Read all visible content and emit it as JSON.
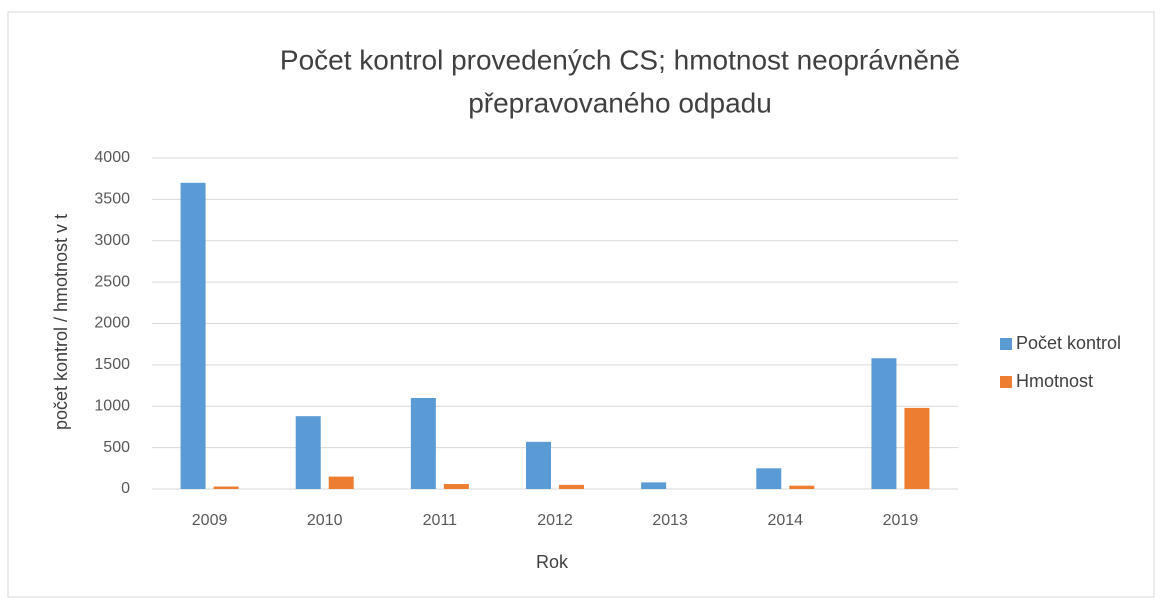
{
  "chart_data": {
    "type": "bar",
    "title": [
      "Počet kontrol provedených CS; hmotnost neoprávněně",
      "přepravovaného odpadu"
    ],
    "x_label": "Rok",
    "y_label": "počet kontrol / hmotnost v t",
    "categories": [
      "2009",
      "2010",
      "2011",
      "2012",
      "2013",
      "2014",
      "2019"
    ],
    "series": [
      {
        "name": "Počet kontrol",
        "color": "#5b9bd5",
        "values": [
          3700,
          880,
          1100,
          570,
          80,
          250,
          1580
        ]
      },
      {
        "name": "Hmotnost",
        "color": "#ed7d31",
        "values": [
          30,
          150,
          60,
          50,
          0,
          40,
          980
        ]
      }
    ],
    "ylim": [
      0,
      4000
    ],
    "yticks": [
      0,
      500,
      1000,
      1500,
      2000,
      2500,
      3000,
      3500,
      4000
    ],
    "grid": true,
    "legend": "right"
  }
}
